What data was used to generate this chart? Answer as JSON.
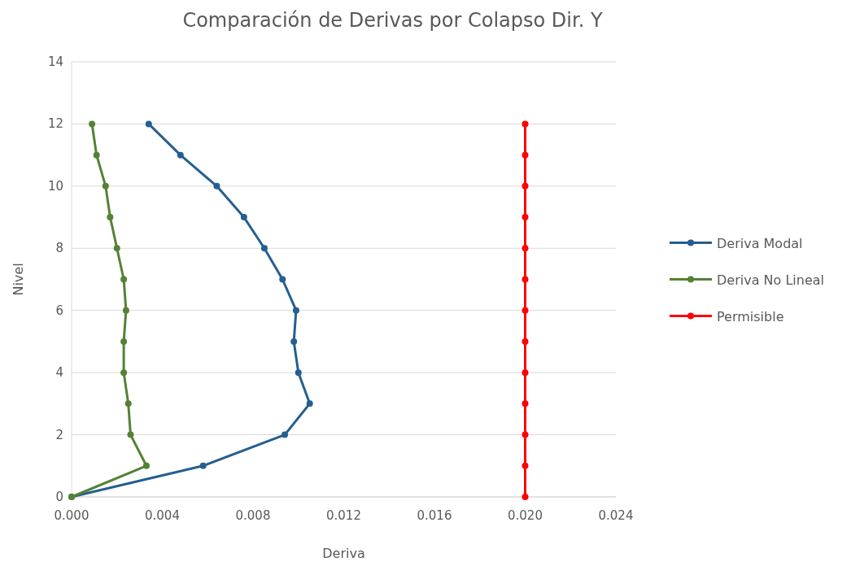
{
  "chart_data": {
    "type": "line",
    "title": "Comparación de Derivas por Colapso Dir. Y",
    "xlabel": "Deriva",
    "ylabel": "Nivel",
    "xlim": [
      0,
      0.024
    ],
    "xticks": [
      {
        "value": 0,
        "label": "0.000"
      },
      {
        "value": 0.004,
        "label": "0.004"
      },
      {
        "value": 0.008,
        "label": "0.008"
      },
      {
        "value": 0.012,
        "label": "0.012"
      },
      {
        "value": 0.016,
        "label": "0.016"
      },
      {
        "value": 0.02,
        "label": "0.020"
      },
      {
        "value": 0.024,
        "label": "0.024"
      }
    ],
    "ylim": [
      0,
      14
    ],
    "yticks": [
      0,
      2,
      4,
      6,
      8,
      10,
      12,
      14
    ],
    "grid": "y",
    "legend": "right",
    "marker": "circle",
    "line_style": "solid",
    "series": [
      {
        "name": "Deriva Modal",
        "color": "#255e91",
        "x": [
          0,
          0.0058,
          0.0094,
          0.0105,
          0.01,
          0.0098,
          0.0099,
          0.0093,
          0.0085,
          0.0076,
          0.0064,
          0.0048,
          0.0034
        ],
        "values": [
          0,
          1,
          2,
          3,
          4,
          5,
          6,
          7,
          8,
          9,
          10,
          11,
          12
        ]
      },
      {
        "name": "Deriva No Lineal",
        "color": "#548235",
        "x": [
          0,
          0.0033,
          0.0026,
          0.0025,
          0.0023,
          0.0023,
          0.0024,
          0.0023,
          0.002,
          0.0017,
          0.0015,
          0.0011,
          0.0009
        ],
        "values": [
          0,
          1,
          2,
          3,
          4,
          5,
          6,
          7,
          8,
          9,
          10,
          11,
          12
        ]
      },
      {
        "name": "Permisible",
        "color": "#ff0000",
        "x": [
          0.02,
          0.02,
          0.02,
          0.02,
          0.02,
          0.02,
          0.02,
          0.02,
          0.02,
          0.02,
          0.02,
          0.02,
          0.02
        ],
        "values": [
          0,
          1,
          2,
          3,
          4,
          5,
          6,
          7,
          8,
          9,
          10,
          11,
          12
        ]
      }
    ]
  }
}
